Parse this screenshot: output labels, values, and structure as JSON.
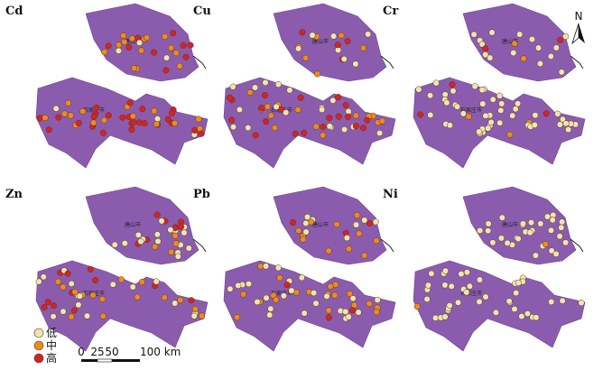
{
  "panels": [
    {
      "label": "Cd"
    },
    {
      "label": "Cu"
    },
    {
      "label": "Cr"
    },
    {
      "label": "Zn"
    },
    {
      "label": "Pb"
    },
    {
      "label": "Ni"
    }
  ],
  "city_labels": [
    "唐山市",
    "石家庄市"
  ],
  "north_label": "N",
  "legend": {
    "items": [
      "低",
      "中",
      "高"
    ]
  },
  "scale_bar": {
    "labels": [
      "0",
      "25",
      "50",
      "100 km"
    ]
  }
}
